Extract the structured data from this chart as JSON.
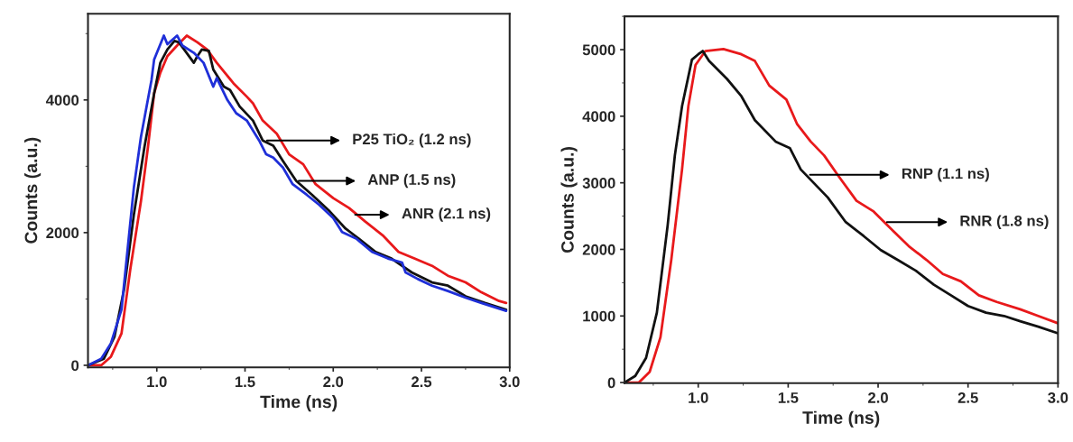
{
  "chart_data": [
    {
      "type": "line",
      "xlabel": "Time (ns)",
      "ylabel": "Counts (a.u.)",
      "xlim": [
        0.61,
        3.0
      ],
      "ylim": [
        -30,
        5300
      ],
      "xticks": [
        {
          "value": 1.0,
          "label": "1.0"
        },
        {
          "value": 1.5,
          "label": "1.5"
        },
        {
          "value": 2.0,
          "label": "2.0"
        },
        {
          "value": 2.5,
          "label": "2.5"
        },
        {
          "value": 3.0,
          "label": "3.0"
        }
      ],
      "yticks": [
        0,
        2000,
        4000
      ],
      "grid": false,
      "legend": false,
      "marker": "none",
      "line_style": "solid",
      "series": [
        {
          "color": "#e8191b",
          "x": [
            0.61,
            0.685,
            0.74,
            0.8,
            0.85,
            0.91,
            0.95,
            0.985,
            1.02,
            1.06,
            1.115,
            1.17,
            1.23,
            1.285,
            1.34,
            1.435,
            1.51,
            1.545,
            1.6,
            1.68,
            1.75,
            1.83,
            1.9,
            2.0,
            2.09,
            2.18,
            2.28,
            2.37,
            2.46,
            2.56,
            2.65,
            2.75,
            2.84,
            2.94,
            2.98
          ],
          "values": [
            0,
            0,
            130,
            480,
            1450,
            2470,
            3290,
            4100,
            4410,
            4660,
            4820,
            4970,
            4870,
            4760,
            4560,
            4250,
            4050,
            3950,
            3690,
            3490,
            3180,
            3030,
            2730,
            2520,
            2370,
            2170,
            1960,
            1710,
            1610,
            1500,
            1350,
            1250,
            1100,
            970,
            940
          ]
        },
        {
          "color": "#111111",
          "x": [
            0.61,
            0.7,
            0.76,
            0.815,
            0.87,
            0.93,
            0.985,
            1.02,
            1.06,
            1.1,
            1.125,
            1.155,
            1.21,
            1.23,
            1.255,
            1.295,
            1.32,
            1.38,
            1.415,
            1.47,
            1.545,
            1.6,
            1.66,
            1.715,
            1.79,
            1.88,
            1.98,
            2.07,
            2.145,
            2.24,
            2.33,
            2.445,
            2.56,
            2.65,
            2.75,
            2.86,
            2.98
          ],
          "values": [
            0,
            100,
            430,
            1150,
            2270,
            3290,
            4100,
            4560,
            4760,
            4890,
            4870,
            4760,
            4560,
            4660,
            4760,
            4740,
            4460,
            4200,
            4150,
            3900,
            3690,
            3390,
            3310,
            3080,
            2780,
            2570,
            2320,
            2060,
            1910,
            1710,
            1610,
            1400,
            1250,
            1200,
            1040,
            940,
            840
          ]
        },
        {
          "color": "#1f2fd8",
          "x": [
            0.61,
            0.685,
            0.74,
            0.8,
            0.835,
            0.87,
            0.91,
            0.97,
            0.985,
            1.04,
            1.06,
            1.115,
            1.145,
            1.21,
            1.265,
            1.32,
            1.34,
            1.4,
            1.45,
            1.51,
            1.58,
            1.62,
            1.66,
            1.715,
            1.77,
            1.85,
            1.92,
            2.0,
            2.05,
            2.13,
            2.22,
            2.31,
            2.39,
            2.41,
            2.48,
            2.56,
            2.65,
            2.75,
            2.84,
            2.98
          ],
          "values": [
            0,
            100,
            330,
            840,
            1760,
            2680,
            3440,
            4300,
            4610,
            4970,
            4840,
            4970,
            4820,
            4710,
            4560,
            4200,
            4330,
            4000,
            3800,
            3690,
            3390,
            3180,
            3130,
            2980,
            2730,
            2570,
            2420,
            2220,
            2010,
            1910,
            1710,
            1610,
            1550,
            1400,
            1300,
            1200,
            1120,
            1020,
            940,
            820
          ]
        }
      ],
      "annotations": [
        {
          "text": "P25 TiO₂ (1.2 ns)",
          "x": 1.61,
          "y": 3390
        },
        {
          "text": "ANP (1.5 ns)",
          "x": 1.79,
          "y": 2780
        },
        {
          "text": "ANR (2.1 ns)",
          "x": 2.11,
          "y": 2270
        }
      ]
    },
    {
      "type": "line",
      "xlabel": "Time (ns)",
      "ylabel": "Counts (a.u.)",
      "xlim": [
        0.59,
        3.0
      ],
      "ylim": [
        -10,
        5500
      ],
      "xticks": [
        {
          "value": 1.0,
          "label": "1.0"
        },
        {
          "value": 1.5,
          "label": "1.5"
        },
        {
          "value": 2.0,
          "label": "2.0"
        },
        {
          "value": 2.5,
          "label": "2.5"
        },
        {
          "value": 3.0,
          "label": "3.0"
        }
      ],
      "yticks": [
        0,
        1000,
        2000,
        3000,
        4000,
        5000
      ],
      "grid": false,
      "legend": false,
      "marker": "none",
      "line_style": "solid",
      "series": [
        {
          "color": "#e8191b",
          "x": [
            0.59,
            0.67,
            0.73,
            0.79,
            0.85,
            0.91,
            0.945,
            0.985,
            1.04,
            1.14,
            1.24,
            1.315,
            1.395,
            1.49,
            1.55,
            1.625,
            1.7,
            1.78,
            1.88,
            1.975,
            2.09,
            2.17,
            2.27,
            2.36,
            2.46,
            2.56,
            2.66,
            2.79,
            2.89,
            3.0
          ],
          "values": [
            0,
            0,
            160,
            680,
            1840,
            3200,
            4150,
            4770,
            4980,
            5010,
            4930,
            4830,
            4460,
            4250,
            3880,
            3620,
            3410,
            3100,
            2730,
            2570,
            2260,
            2050,
            1840,
            1630,
            1520,
            1310,
            1210,
            1100,
            1000,
            890
          ]
        },
        {
          "color": "#111111",
          "x": [
            0.59,
            0.65,
            0.71,
            0.77,
            0.83,
            0.87,
            0.91,
            0.965,
            1.0,
            1.025,
            1.06,
            1.16,
            1.24,
            1.315,
            1.43,
            1.51,
            1.57,
            1.645,
            1.72,
            1.82,
            1.92,
            2.015,
            2.11,
            2.21,
            2.31,
            2.405,
            2.5,
            2.6,
            2.7,
            2.79,
            2.89,
            3.0
          ],
          "values": [
            0,
            100,
            370,
            1050,
            2360,
            3410,
            4150,
            4850,
            4930,
            4980,
            4830,
            4560,
            4300,
            3940,
            3620,
            3520,
            3200,
            2990,
            2780,
            2410,
            2200,
            1990,
            1840,
            1680,
            1470,
            1310,
            1150,
            1050,
            1000,
            920,
            840,
            740
          ]
        }
      ],
      "annotations": [
        {
          "text": "RNP (1.1 ns)",
          "x": 1.607,
          "y": 3120
        },
        {
          "text": "RNR (1.8 ns)",
          "x": 2.035,
          "y": 2410
        }
      ]
    }
  ]
}
